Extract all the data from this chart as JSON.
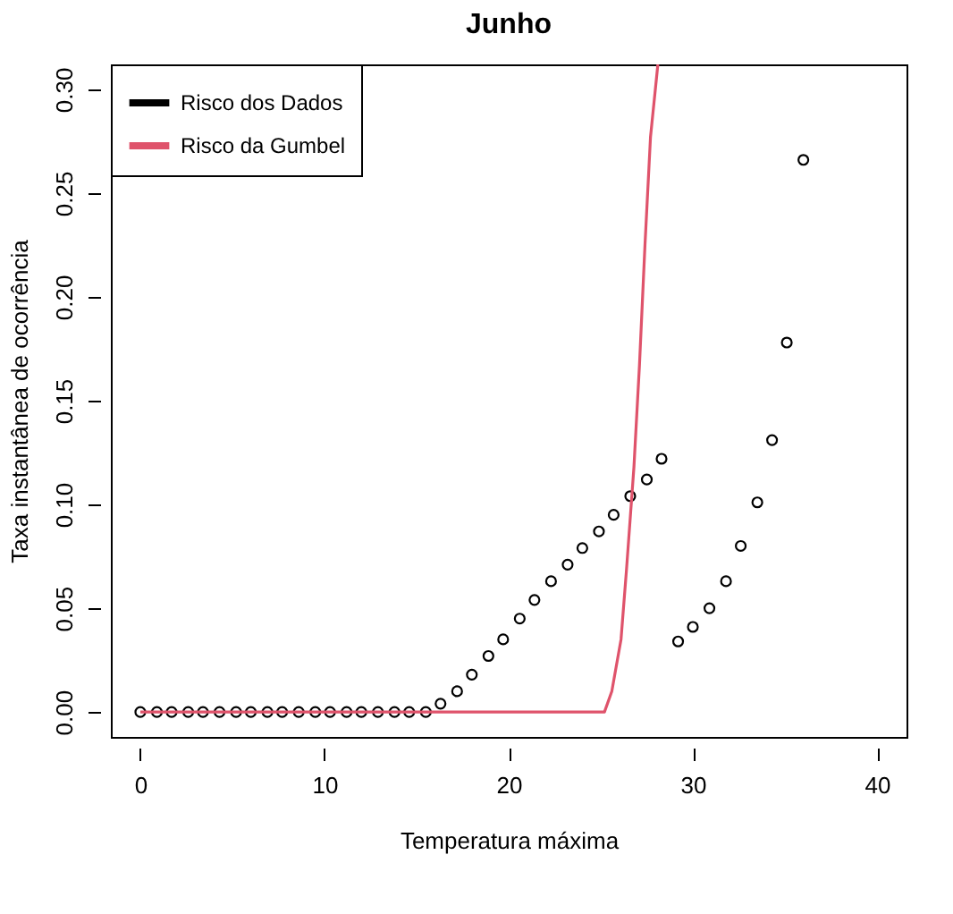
{
  "chart_data": {
    "type": "scatter",
    "title": "Junho",
    "xlabel": "Temperatura máxima",
    "ylabel": "Taxa instantânea de ocorrência",
    "xlim": [
      -1.6,
      41.6
    ],
    "ylim": [
      -0.012,
      0.312
    ],
    "xticks": [
      0,
      10,
      20,
      30,
      40
    ],
    "yticks": [
      {
        "value": 0,
        "label": "0.00"
      },
      {
        "value": 0.05,
        "label": "0.05"
      },
      {
        "value": 0.1,
        "label": "0.10"
      },
      {
        "value": 0.15,
        "label": "0.15"
      },
      {
        "value": 0.2,
        "label": "0.20"
      },
      {
        "value": 0.25,
        "label": "0.25"
      },
      {
        "value": 0.3,
        "label": "0.30"
      }
    ],
    "grid": false,
    "legend": "top left",
    "series": [
      {
        "name": "Risco dos Dados",
        "marker": "circle",
        "color": "#000000",
        "x": [
          0,
          0.9,
          1.7,
          2.6,
          3.4,
          4.3,
          5.2,
          6.0,
          6.9,
          7.7,
          8.6,
          9.5,
          10.3,
          11.2,
          12.0,
          12.9,
          13.8,
          14.6,
          15.5,
          16.3,
          17.2,
          18.0,
          18.9,
          19.7,
          20.6,
          21.4,
          22.3,
          23.2,
          24.0,
          24.9,
          25.7,
          26.6,
          27.5,
          28.3,
          29.2,
          30.0,
          30.9,
          31.8,
          32.6,
          33.5,
          34.3,
          35.1,
          36.0
        ],
        "values": [
          0,
          0,
          0,
          0,
          0,
          0,
          0,
          0,
          0,
          0,
          0,
          0,
          0,
          0,
          0,
          0,
          0,
          0,
          0,
          0.004,
          0.01,
          0.018,
          0.027,
          0.035,
          0.045,
          0.054,
          0.063,
          0.071,
          0.079,
          0.087,
          0.095,
          0.104,
          0.112,
          0.122,
          0.034,
          0.041,
          0.05,
          0.063,
          0.08,
          0.101,
          0.131,
          0.178,
          0.266
        ]
      },
      {
        "name": "Risco da Gumbel",
        "type": "line",
        "color": "#df536b",
        "line_style": "solid",
        "x": [
          0,
          25.2,
          25.6,
          26.1,
          26.4,
          26.8,
          27.1,
          27.4,
          27.7,
          28.1
        ],
        "values": [
          0,
          0,
          0.01,
          0.035,
          0.069,
          0.118,
          0.167,
          0.225,
          0.277,
          0.312
        ]
      }
    ]
  }
}
